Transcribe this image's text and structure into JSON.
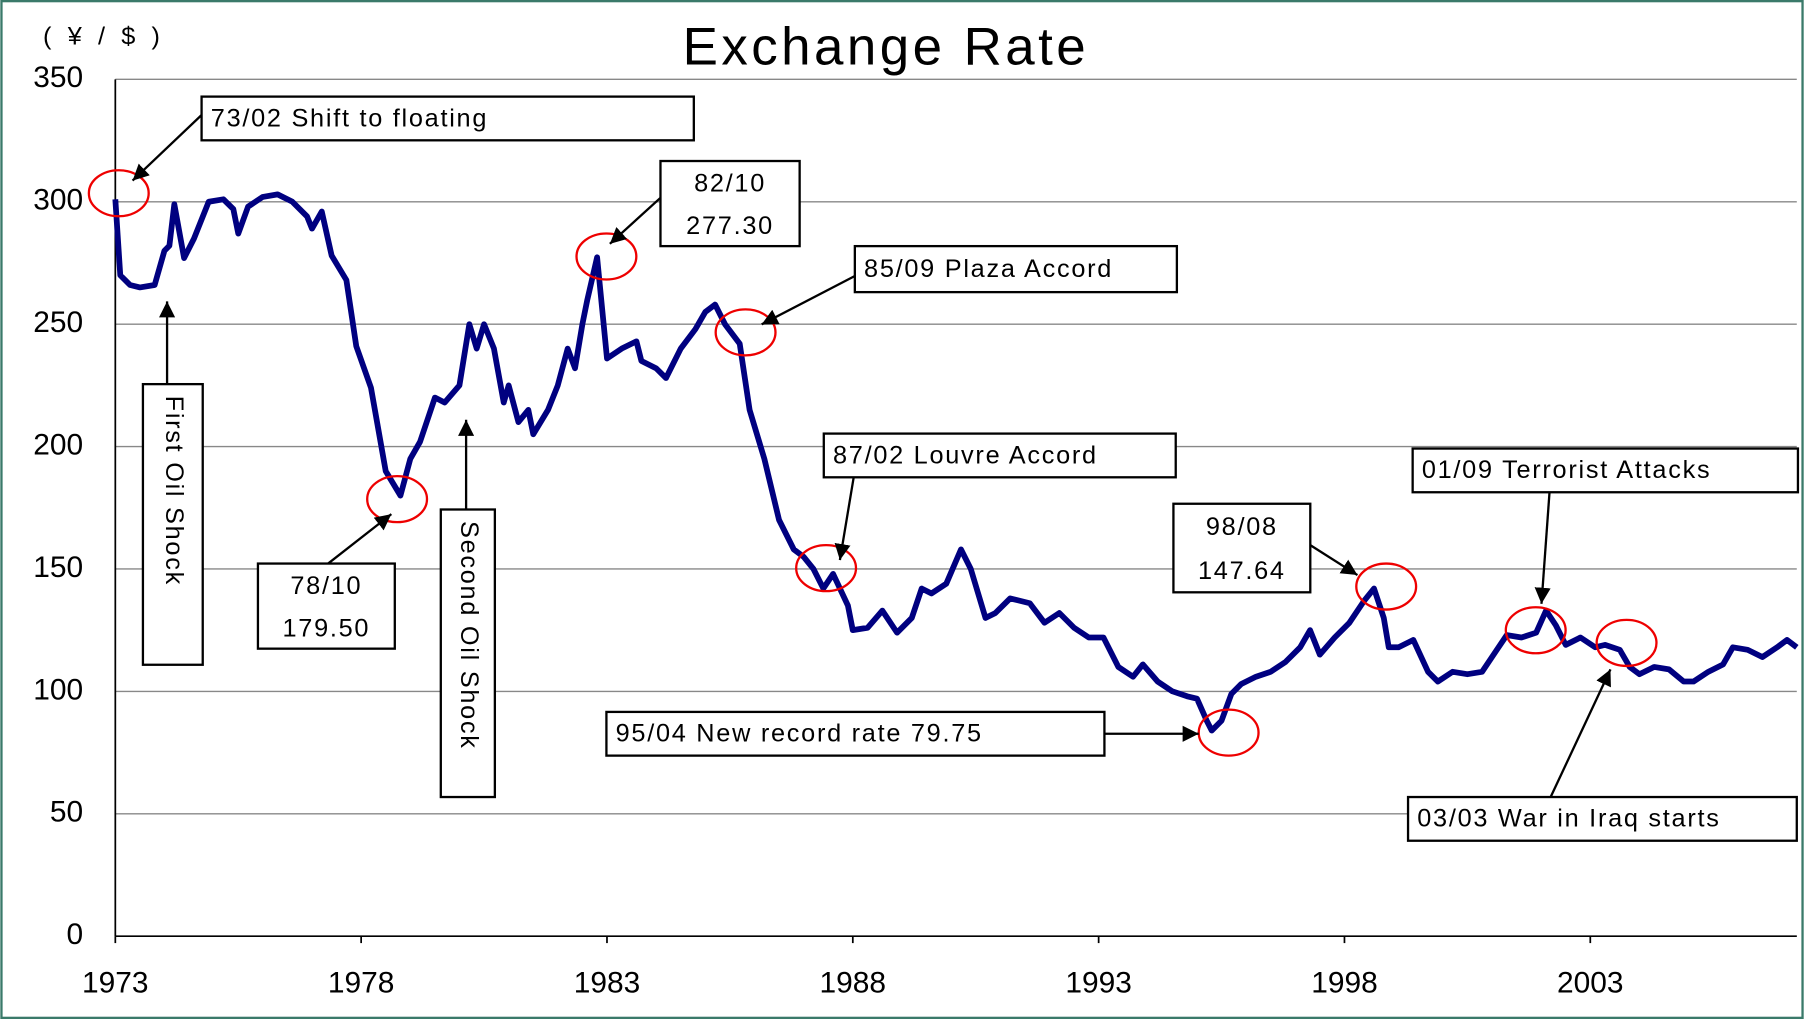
{
  "chart_data": {
    "type": "line",
    "title": "Exchange Rate",
    "y_unit": "( ¥ / $ )",
    "x": [
      1973.0,
      1973.1,
      1973.3,
      1973.5,
      1973.8,
      1974.0,
      1974.1,
      1974.2,
      1974.4,
      1974.6,
      1974.9,
      1975.2,
      1975.4,
      1975.5,
      1975.7,
      1976.0,
      1976.3,
      1976.6,
      1976.9,
      1977.0,
      1977.2,
      1977.4,
      1977.7,
      1977.9,
      1978.2,
      1978.5,
      1978.8,
      1979.0,
      1979.2,
      1979.5,
      1979.7,
      1980.0,
      1980.2,
      1980.35,
      1980.5,
      1980.7,
      1980.9,
      1981.0,
      1981.2,
      1981.4,
      1981.5,
      1981.8,
      1982.0,
      1982.2,
      1982.35,
      1982.5,
      1982.6,
      1982.8,
      1983.0,
      1983.3,
      1983.6,
      1983.7,
      1984.0,
      1984.2,
      1984.5,
      1984.8,
      1985.0,
      1985.2,
      1985.4,
      1985.7,
      1985.9,
      1986.2,
      1986.5,
      1986.8,
      1987.0,
      1987.2,
      1987.4,
      1987.6,
      1987.9,
      1988.0,
      1988.3,
      1988.6,
      1988.9,
      1989.2,
      1989.4,
      1989.6,
      1989.9,
      1990.2,
      1990.4,
      1990.7,
      1990.9,
      1991.2,
      1991.6,
      1991.9,
      1992.2,
      1992.5,
      1992.8,
      1993.1,
      1993.4,
      1993.7,
      1993.9,
      1994.2,
      1994.5,
      1994.8,
      1995.0,
      1995.2,
      1995.3,
      1995.5,
      1995.7,
      1995.9,
      1996.2,
      1996.5,
      1996.8,
      1997.1,
      1997.3,
      1997.5,
      1997.8,
      1998.1,
      1998.4,
      1998.6,
      1998.8,
      1998.9,
      1999.1,
      1999.4,
      1999.7,
      1999.9,
      2000.2,
      2000.5,
      2000.8,
      2001.1,
      2001.3,
      2001.6,
      2001.9,
      2002.1,
      2002.3,
      2002.5,
      2002.8,
      2003.1,
      2003.3,
      2003.6,
      2003.8,
      2004.0,
      2004.3,
      2004.6,
      2004.9,
      2005.1,
      2005.4,
      2005.7,
      2005.9,
      2006.2,
      2006.5,
      2006.8,
      2007.0,
      2007.2
    ],
    "series": [
      {
        "color": "#000080",
        "values": [
          301,
          270,
          266,
          265,
          266,
          280,
          282,
          299,
          277,
          285,
          300,
          301,
          297,
          287,
          298,
          302,
          303,
          300,
          294,
          289,
          296,
          278,
          268,
          241,
          224,
          190,
          180,
          195,
          202,
          220,
          218,
          225,
          250,
          240,
          250,
          240,
          218,
          225,
          210,
          215,
          205,
          215,
          225,
          240,
          232,
          250,
          260,
          277.3,
          236,
          240,
          243,
          235,
          232,
          228,
          240,
          248,
          255,
          258,
          250,
          242,
          215,
          195,
          170,
          158,
          155,
          150,
          142,
          148,
          135,
          125,
          126,
          133,
          124,
          130,
          142,
          140,
          144,
          158,
          150,
          130,
          132,
          138,
          136,
          128,
          132,
          126,
          122,
          122,
          110,
          106,
          111,
          104,
          100,
          98,
          97,
          88,
          84,
          88,
          99,
          103,
          106,
          108,
          112,
          118,
          125,
          115,
          122,
          128,
          137,
          142,
          130,
          118,
          118,
          121,
          108,
          104,
          108,
          107,
          108,
          117,
          123,
          122,
          124,
          133,
          127,
          119,
          122,
          118,
          119,
          117,
          110,
          107,
          110,
          109,
          104,
          104,
          108,
          111,
          118,
          117,
          114,
          118,
          121,
          118
        ]
      }
    ],
    "xlim": [
      1973,
      2007.2
    ],
    "xticks": [
      1973,
      1978,
      1983,
      1988,
      1993,
      1998,
      2003
    ],
    "ylim": [
      0,
      350
    ],
    "yticks": [
      0,
      50,
      100,
      150,
      200,
      250,
      300,
      350
    ],
    "grid": true,
    "annotations": [
      {
        "lines": [
          "73/02  Shift to floating"
        ]
      },
      {
        "lines": [
          "First Oil Shock"
        ]
      },
      {
        "lines": [
          "78/10",
          "179.50"
        ]
      },
      {
        "lines": [
          "Second Oil Shock"
        ]
      },
      {
        "lines": [
          "82/10",
          "277.30"
        ]
      },
      {
        "lines": [
          "85/09  Plaza Accord"
        ]
      },
      {
        "lines": [
          "87/02  Louvre Accord"
        ]
      },
      {
        "lines": [
          "95/04  New record rate 79.75"
        ]
      },
      {
        "lines": [
          "98/08",
          "147.64"
        ]
      },
      {
        "lines": [
          "01/09  Terrorist Attacks"
        ]
      },
      {
        "lines": [
          "03/03  War in Iraq starts"
        ]
      }
    ]
  }
}
